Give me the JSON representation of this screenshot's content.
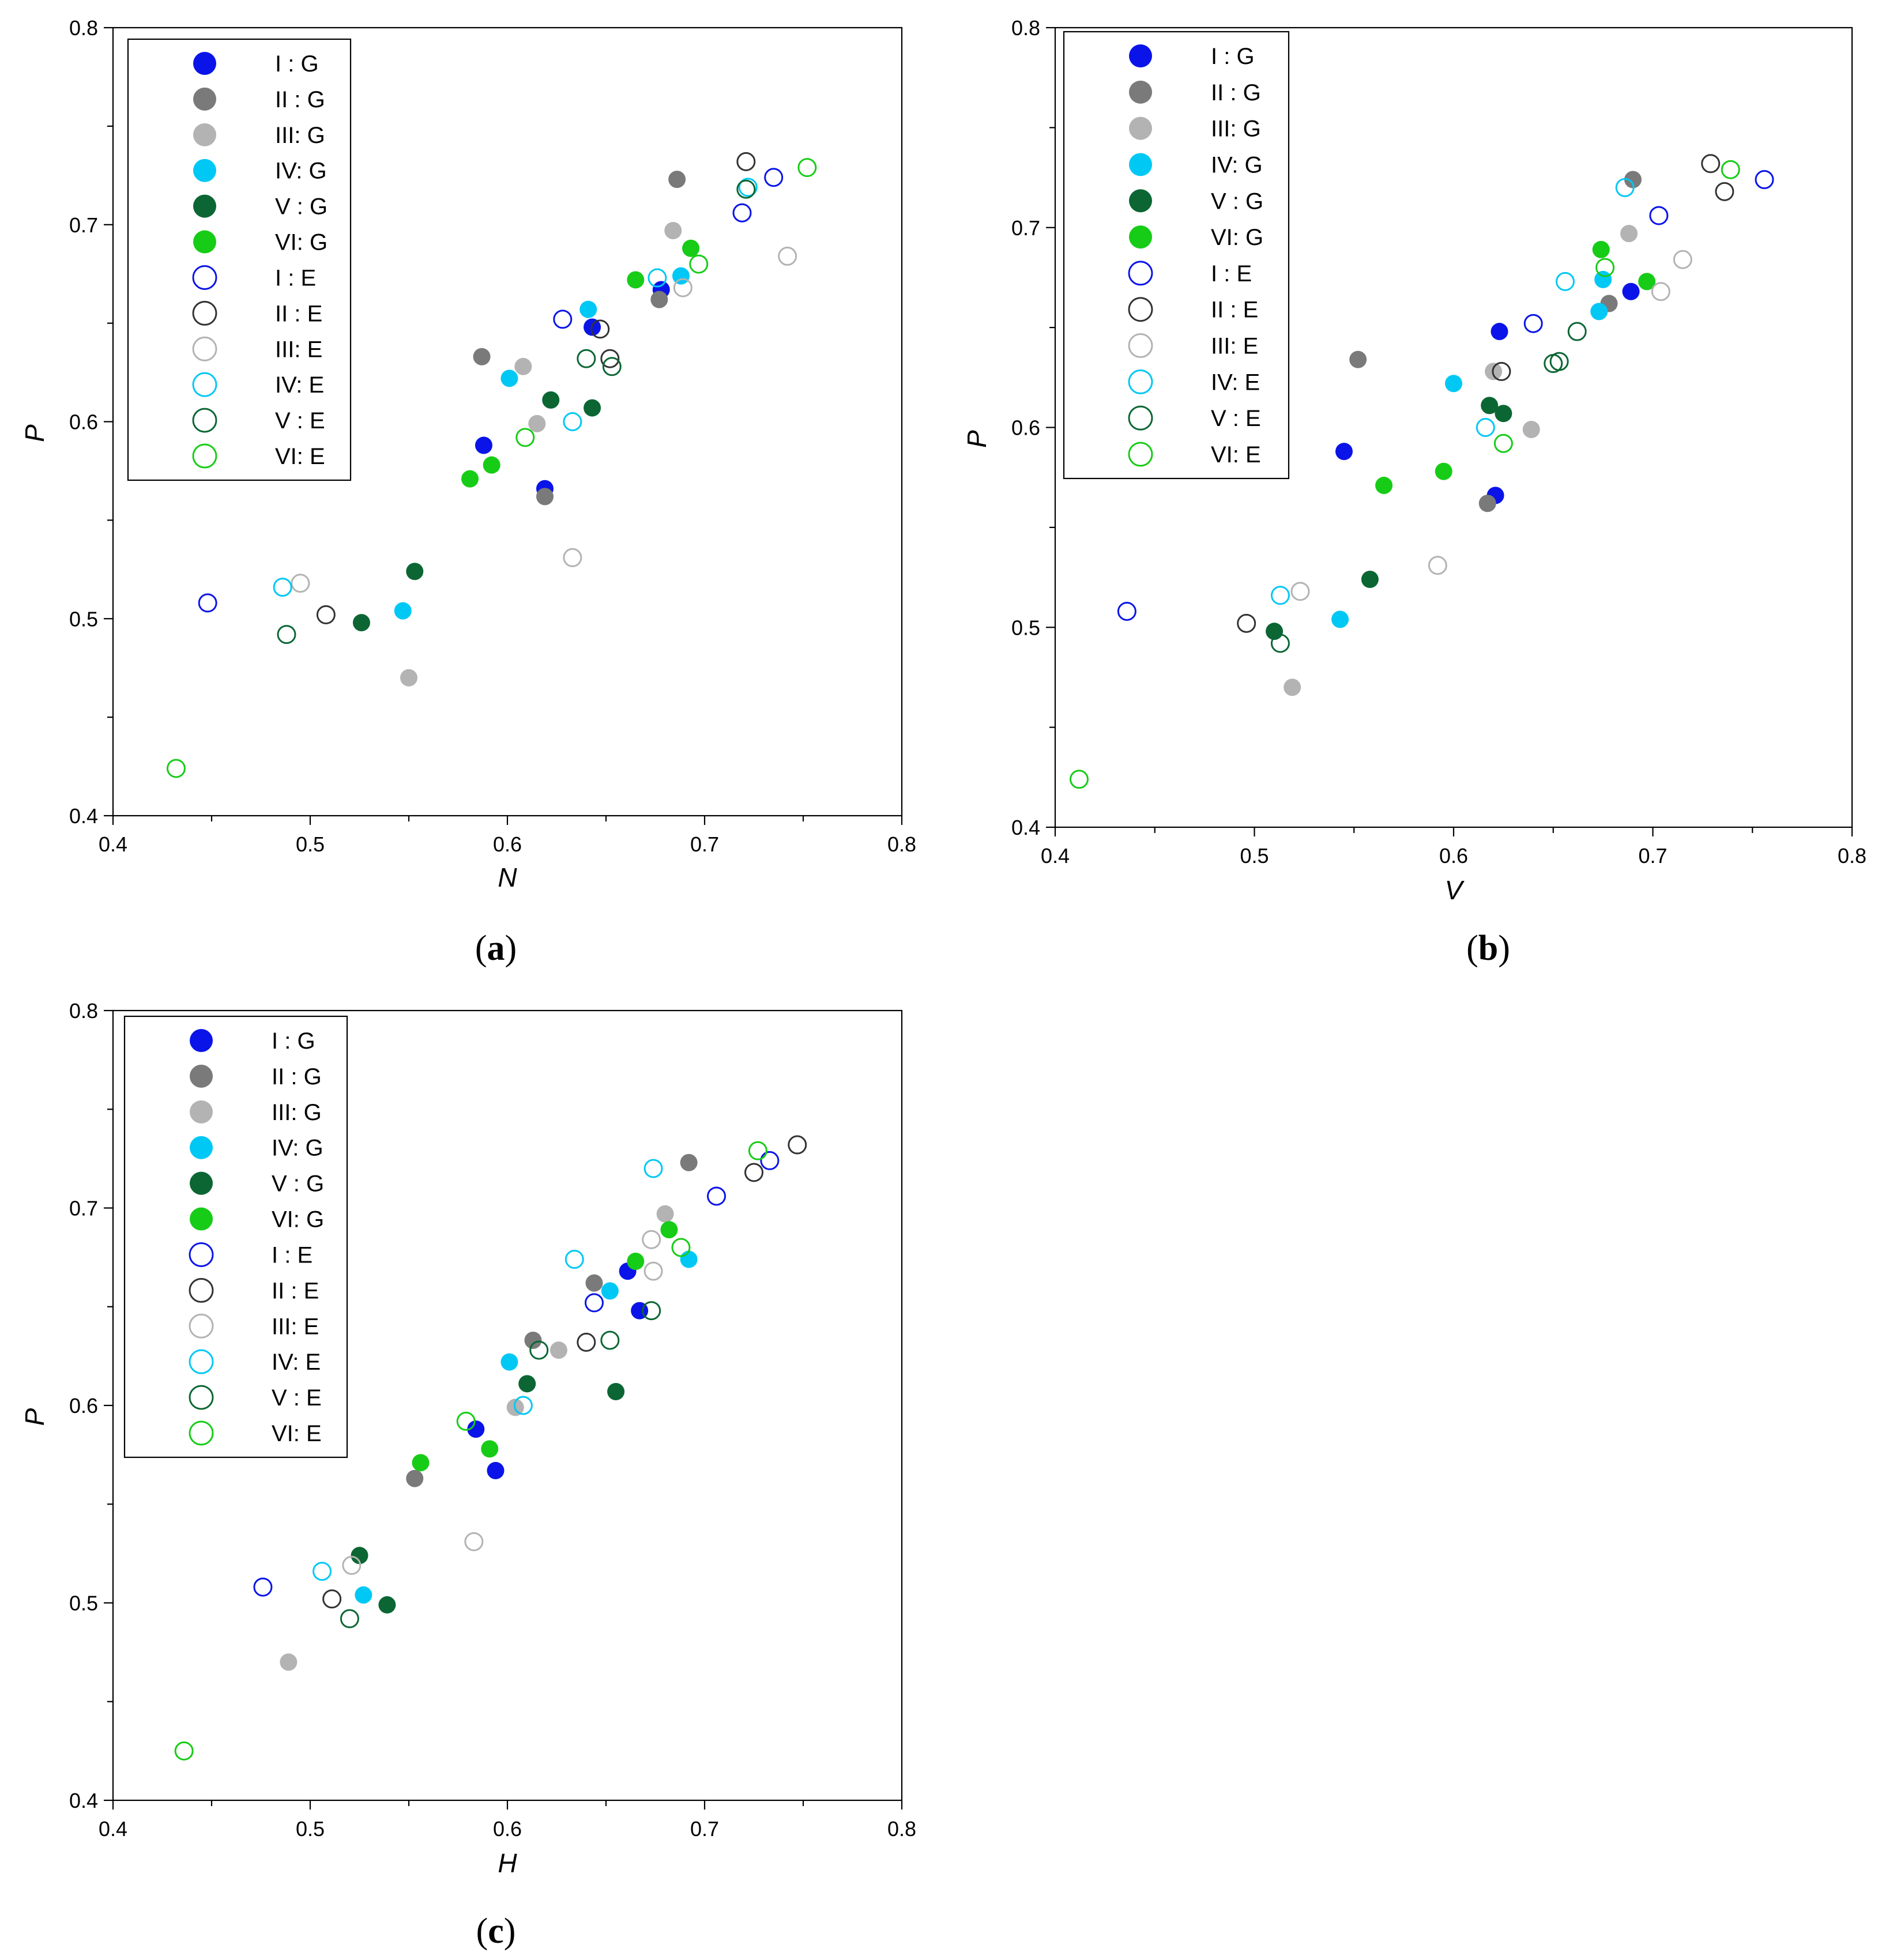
{
  "legend": [
    {
      "label": "I  : G",
      "color": "#0a14e8",
      "filled": true
    },
    {
      "label": "II : G",
      "color": "#7a7a7a",
      "filled": true
    },
    {
      "label": "III: G",
      "color": "#b3b3b3",
      "filled": true
    },
    {
      "label": "IV: G",
      "color": "#00c8f5",
      "filled": true
    },
    {
      "label": "V : G",
      "color": "#0b6634",
      "filled": true
    },
    {
      "label": "VI: G",
      "color": "#17cc17",
      "filled": true
    },
    {
      "label": "I  : E",
      "color": "#0a14e8",
      "filled": false
    },
    {
      "label": "II : E",
      "color": "#333333",
      "filled": false
    },
    {
      "label": "III: E",
      "color": "#b3b3b3",
      "filled": false
    },
    {
      "label": "IV: E",
      "color": "#00c8f5",
      "filled": false
    },
    {
      "label": "V : E",
      "color": "#0b6634",
      "filled": false
    },
    {
      "label": "VI: E",
      "color": "#17cc17",
      "filled": false
    }
  ],
  "chart_data": [
    {
      "type": "scatter",
      "panel_label": "a",
      "xlabel": "N",
      "ylabel": "P",
      "xlim": [
        0.4,
        0.8
      ],
      "ylim": [
        0.4,
        0.8
      ],
      "xticks": [
        "0.4",
        "0.5",
        "0.6",
        "0.7",
        "0.8"
      ],
      "yticks": [
        "0.4",
        "0.5",
        "0.6",
        "0.7",
        "0.8"
      ],
      "legend_position": "top-left",
      "series": [
        {
          "name": "I  : G",
          "points": [
            [
              0.588,
              0.588
            ],
            [
              0.619,
              0.566
            ],
            [
              0.643,
              0.648
            ],
            [
              0.678,
              0.667
            ]
          ]
        },
        {
          "name": "II : G",
          "points": [
            [
              0.587,
              0.633
            ],
            [
              0.619,
              0.562
            ],
            [
              0.677,
              0.662
            ],
            [
              0.686,
              0.723
            ]
          ]
        },
        {
          "name": "III: G",
          "points": [
            [
              0.55,
              0.47
            ],
            [
              0.608,
              0.628
            ],
            [
              0.615,
              0.599
            ],
            [
              0.684,
              0.697
            ]
          ]
        },
        {
          "name": "IV: G",
          "points": [
            [
              0.547,
              0.504
            ],
            [
              0.601,
              0.622
            ],
            [
              0.641,
              0.657
            ],
            [
              0.688,
              0.674
            ]
          ]
        },
        {
          "name": "V : G",
          "points": [
            [
              0.526,
              0.498
            ],
            [
              0.553,
              0.524
            ],
            [
              0.622,
              0.611
            ],
            [
              0.643,
              0.607
            ]
          ]
        },
        {
          "name": "VI: G",
          "points": [
            [
              0.581,
              0.571
            ],
            [
              0.592,
              0.578
            ],
            [
              0.665,
              0.672
            ],
            [
              0.693,
              0.688
            ]
          ]
        },
        {
          "name": "I  : E",
          "points": [
            [
              0.448,
              0.508
            ],
            [
              0.628,
              0.652
            ],
            [
              0.719,
              0.706
            ],
            [
              0.735,
              0.724
            ]
          ]
        },
        {
          "name": "II : E",
          "points": [
            [
              0.508,
              0.502
            ],
            [
              0.647,
              0.647
            ],
            [
              0.652,
              0.632
            ],
            [
              0.721,
              0.732
            ]
          ]
        },
        {
          "name": "III: E",
          "points": [
            [
              0.495,
              0.518
            ],
            [
              0.633,
              0.531
            ],
            [
              0.689,
              0.668
            ],
            [
              0.742,
              0.684
            ]
          ]
        },
        {
          "name": "IV: E",
          "points": [
            [
              0.486,
              0.516
            ],
            [
              0.633,
              0.6
            ],
            [
              0.676,
              0.673
            ],
            [
              0.722,
              0.719
            ]
          ]
        },
        {
          "name": "V : E",
          "points": [
            [
              0.488,
              0.492
            ],
            [
              0.64,
              0.632
            ],
            [
              0.653,
              0.628
            ],
            [
              0.721,
              0.718
            ]
          ]
        },
        {
          "name": "VI: E",
          "points": [
            [
              0.432,
              0.424
            ],
            [
              0.609,
              0.592
            ],
            [
              0.697,
              0.68
            ],
            [
              0.752,
              0.729
            ]
          ]
        }
      ]
    },
    {
      "type": "scatter",
      "panel_label": "b",
      "xlabel": "V",
      "ylabel": "P",
      "xlim": [
        0.4,
        0.8
      ],
      "ylim": [
        0.4,
        0.8
      ],
      "xticks": [
        "0.4",
        "0.5",
        "0.6",
        "0.7",
        "0.8"
      ],
      "yticks": [
        "0.4",
        "0.5",
        "0.6",
        "0.7",
        "0.8"
      ],
      "legend_position": "top-left",
      "series": [
        {
          "name": "I  : G",
          "points": [
            [
              0.545,
              0.588
            ],
            [
              0.621,
              0.566
            ],
            [
              0.623,
              0.648
            ],
            [
              0.689,
              0.668
            ]
          ]
        },
        {
          "name": "II : G",
          "points": [
            [
              0.552,
              0.634
            ],
            [
              0.617,
              0.562
            ],
            [
              0.678,
              0.662
            ],
            [
              0.69,
              0.724
            ]
          ]
        },
        {
          "name": "III: G",
          "points": [
            [
              0.519,
              0.47
            ],
            [
              0.62,
              0.628
            ],
            [
              0.639,
              0.599
            ],
            [
              0.688,
              0.697
            ]
          ]
        },
        {
          "name": "IV: G",
          "points": [
            [
              0.543,
              0.504
            ],
            [
              0.6,
              0.622
            ],
            [
              0.673,
              0.658
            ],
            [
              0.675,
              0.674
            ]
          ]
        },
        {
          "name": "V : G",
          "points": [
            [
              0.51,
              0.498
            ],
            [
              0.558,
              0.524
            ],
            [
              0.618,
              0.611
            ],
            [
              0.625,
              0.607
            ]
          ]
        },
        {
          "name": "VI: G",
          "points": [
            [
              0.565,
              0.571
            ],
            [
              0.595,
              0.578
            ],
            [
              0.674,
              0.689
            ],
            [
              0.697,
              0.673
            ]
          ]
        },
        {
          "name": "I  : E",
          "points": [
            [
              0.436,
              0.508
            ],
            [
              0.64,
              0.652
            ],
            [
              0.703,
              0.706
            ],
            [
              0.756,
              0.724
            ]
          ]
        },
        {
          "name": "II : E",
          "points": [
            [
              0.496,
              0.502
            ],
            [
              0.624,
              0.628
            ],
            [
              0.729,
              0.732
            ],
            [
              0.736,
              0.718
            ]
          ]
        },
        {
          "name": "III: E",
          "points": [
            [
              0.523,
              0.518
            ],
            [
              0.592,
              0.531
            ],
            [
              0.704,
              0.668
            ],
            [
              0.715,
              0.684
            ]
          ]
        },
        {
          "name": "IV: E",
          "points": [
            [
              0.513,
              0.516
            ],
            [
              0.616,
              0.6
            ],
            [
              0.656,
              0.673
            ],
            [
              0.686,
              0.72
            ]
          ]
        },
        {
          "name": "V : E",
          "points": [
            [
              0.513,
              0.492
            ],
            [
              0.65,
              0.632
            ],
            [
              0.653,
              0.633
            ],
            [
              0.662,
              0.648
            ]
          ]
        },
        {
          "name": "VI: E",
          "points": [
            [
              0.412,
              0.424
            ],
            [
              0.625,
              0.592
            ],
            [
              0.676,
              0.68
            ],
            [
              0.739,
              0.729
            ]
          ]
        }
      ]
    },
    {
      "type": "scatter",
      "panel_label": "c",
      "xlabel": "H",
      "ylabel": "P",
      "xlim": [
        0.4,
        0.8
      ],
      "ylim": [
        0.4,
        0.8
      ],
      "xticks": [
        "0.4",
        "0.5",
        "0.6",
        "0.7",
        "0.8"
      ],
      "yticks": [
        "0.4",
        "0.5",
        "0.6",
        "0.7",
        "0.8"
      ],
      "legend_position": "top-left",
      "series": [
        {
          "name": "I  : G",
          "points": [
            [
              0.584,
              0.588
            ],
            [
              0.594,
              0.567
            ],
            [
              0.661,
              0.668
            ],
            [
              0.667,
              0.648
            ]
          ]
        },
        {
          "name": "II : G",
          "points": [
            [
              0.553,
              0.563
            ],
            [
              0.613,
              0.633
            ],
            [
              0.644,
              0.662
            ],
            [
              0.692,
              0.723
            ]
          ]
        },
        {
          "name": "III: G",
          "points": [
            [
              0.489,
              0.47
            ],
            [
              0.604,
              0.599
            ],
            [
              0.626,
              0.628
            ],
            [
              0.68,
              0.697
            ]
          ]
        },
        {
          "name": "IV: G",
          "points": [
            [
              0.527,
              0.504
            ],
            [
              0.601,
              0.622
            ],
            [
              0.652,
              0.658
            ],
            [
              0.692,
              0.674
            ]
          ]
        },
        {
          "name": "V : G",
          "points": [
            [
              0.525,
              0.524
            ],
            [
              0.539,
              0.499
            ],
            [
              0.61,
              0.611
            ],
            [
              0.655,
              0.607
            ]
          ]
        },
        {
          "name": "VI: G",
          "points": [
            [
              0.556,
              0.571
            ],
            [
              0.591,
              0.578
            ],
            [
              0.665,
              0.673
            ],
            [
              0.682,
              0.689
            ]
          ]
        },
        {
          "name": "I  : E",
          "points": [
            [
              0.476,
              0.508
            ],
            [
              0.644,
              0.652
            ],
            [
              0.706,
              0.706
            ],
            [
              0.733,
              0.724
            ]
          ]
        },
        {
          "name": "II : E",
          "points": [
            [
              0.511,
              0.502
            ],
            [
              0.64,
              0.632
            ],
            [
              0.725,
              0.718
            ],
            [
              0.747,
              0.732
            ]
          ]
        },
        {
          "name": "III: E",
          "points": [
            [
              0.521,
              0.519
            ],
            [
              0.583,
              0.531
            ],
            [
              0.673,
              0.684
            ],
            [
              0.674,
              0.668
            ]
          ]
        },
        {
          "name": "IV: E",
          "points": [
            [
              0.506,
              0.516
            ],
            [
              0.608,
              0.6
            ],
            [
              0.634,
              0.674
            ],
            [
              0.674,
              0.72
            ]
          ]
        },
        {
          "name": "V : E",
          "points": [
            [
              0.52,
              0.492
            ],
            [
              0.616,
              0.628
            ],
            [
              0.652,
              0.633
            ],
            [
              0.673,
              0.648
            ]
          ]
        },
        {
          "name": "VI: E",
          "points": [
            [
              0.436,
              0.425
            ],
            [
              0.579,
              0.592
            ],
            [
              0.688,
              0.68
            ],
            [
              0.727,
              0.729
            ]
          ]
        }
      ]
    }
  ]
}
